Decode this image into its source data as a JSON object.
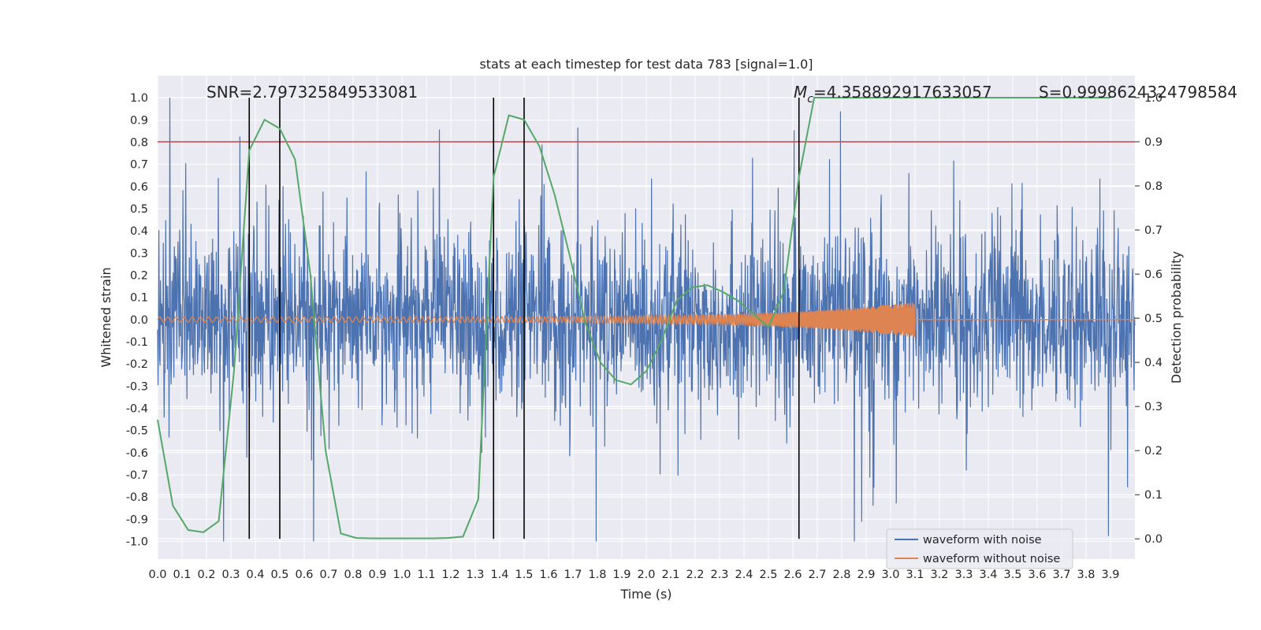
{
  "chart_data": {
    "type": "line",
    "title": "stats at each timestep for test data 783 [signal=1.0]",
    "xlabel": "Time (s)",
    "ylabel_left": "Whitened strain",
    "ylabel_right": "Detection probability",
    "xlim": [
      0.0,
      4.0
    ],
    "ylim_left": [
      -1.08,
      1.1
    ],
    "ylim_right": [
      -0.046,
      1.05
    ],
    "x_ticks": [
      "0.0",
      "0.1",
      "0.2",
      "0.3",
      "0.4",
      "0.5",
      "0.6",
      "0.7",
      "0.8",
      "0.9",
      "1.0",
      "1.1",
      "1.2",
      "1.3",
      "1.4",
      "1.5",
      "1.6",
      "1.7",
      "1.8",
      "1.9",
      "2.0",
      "2.1",
      "2.2",
      "2.3",
      "2.4",
      "2.5",
      "2.6",
      "2.7",
      "2.8",
      "2.9",
      "3.0",
      "3.1",
      "3.2",
      "3.3",
      "3.4",
      "3.5",
      "3.6",
      "3.7",
      "3.8",
      "3.9"
    ],
    "y_ticks_left": [
      "1.0",
      "0.9",
      "0.8",
      "0.7",
      "0.6",
      "0.5",
      "0.4",
      "0.3",
      "0.2",
      "0.1",
      "0.0",
      "-0.1",
      "-0.2",
      "-0.3",
      "-0.4",
      "-0.5",
      "-0.6",
      "-0.7",
      "-0.8",
      "-0.9",
      "-1.0"
    ],
    "y_ticks_right": [
      "1.0",
      "0.9",
      "0.8",
      "0.7",
      "0.6",
      "0.5",
      "0.4",
      "0.3",
      "0.2",
      "0.1",
      "0.0"
    ],
    "grid": true,
    "legend_position": "lower-right",
    "annotations": {
      "snr": "SNR=2.797325849533081",
      "mc_symbol": "M",
      "mc_sub": "c",
      "mc_value": "=4.358892917633057",
      "s": "S=0.9998624324798584"
    },
    "threshold_line": {
      "axis": "right",
      "y": 0.9,
      "color": "#c44e52"
    },
    "vertical_markers": [
      0.375,
      0.5,
      1.375,
      1.5,
      2.625
    ],
    "series": [
      {
        "name": "waveform with noise",
        "axis": "left",
        "color": "#4c72b0",
        "description_range": [
          -1.0,
          1.0
        ]
      },
      {
        "name": "waveform without noise",
        "axis": "left",
        "color": "#dd8452",
        "x_end": 3.1,
        "peak_amplitude": 0.08
      },
      {
        "name": "",
        "axis": "right",
        "color": "#55a868",
        "x": [
          0.0,
          0.0625,
          0.125,
          0.1875,
          0.25,
          0.3125,
          0.375,
          0.4375,
          0.5,
          0.5625,
          0.625,
          0.6875,
          0.75,
          0.8125,
          0.875,
          0.9375,
          1.0,
          1.0625,
          1.125,
          1.1875,
          1.25,
          1.3125,
          1.375,
          1.4375,
          1.5,
          1.5625,
          1.625,
          1.6875,
          1.75,
          1.8125,
          1.875,
          1.9375,
          2.0,
          2.0625,
          2.125,
          2.1875,
          2.25,
          2.3125,
          2.375,
          2.4375,
          2.5,
          2.5625,
          2.625,
          2.6875,
          2.75,
          3.9
        ],
        "y": [
          0.27,
          0.075,
          0.02,
          0.015,
          0.04,
          0.38,
          0.88,
          0.95,
          0.93,
          0.86,
          0.6,
          0.2,
          0.012,
          0.002,
          0.001,
          0.001,
          0.001,
          0.001,
          0.001,
          0.002,
          0.005,
          0.09,
          0.82,
          0.96,
          0.95,
          0.89,
          0.78,
          0.64,
          0.49,
          0.4,
          0.36,
          0.35,
          0.38,
          0.45,
          0.54,
          0.57,
          0.575,
          0.56,
          0.54,
          0.51,
          0.48,
          0.56,
          0.82,
          1.0,
          1.0,
          1.0
        ]
      }
    ]
  }
}
